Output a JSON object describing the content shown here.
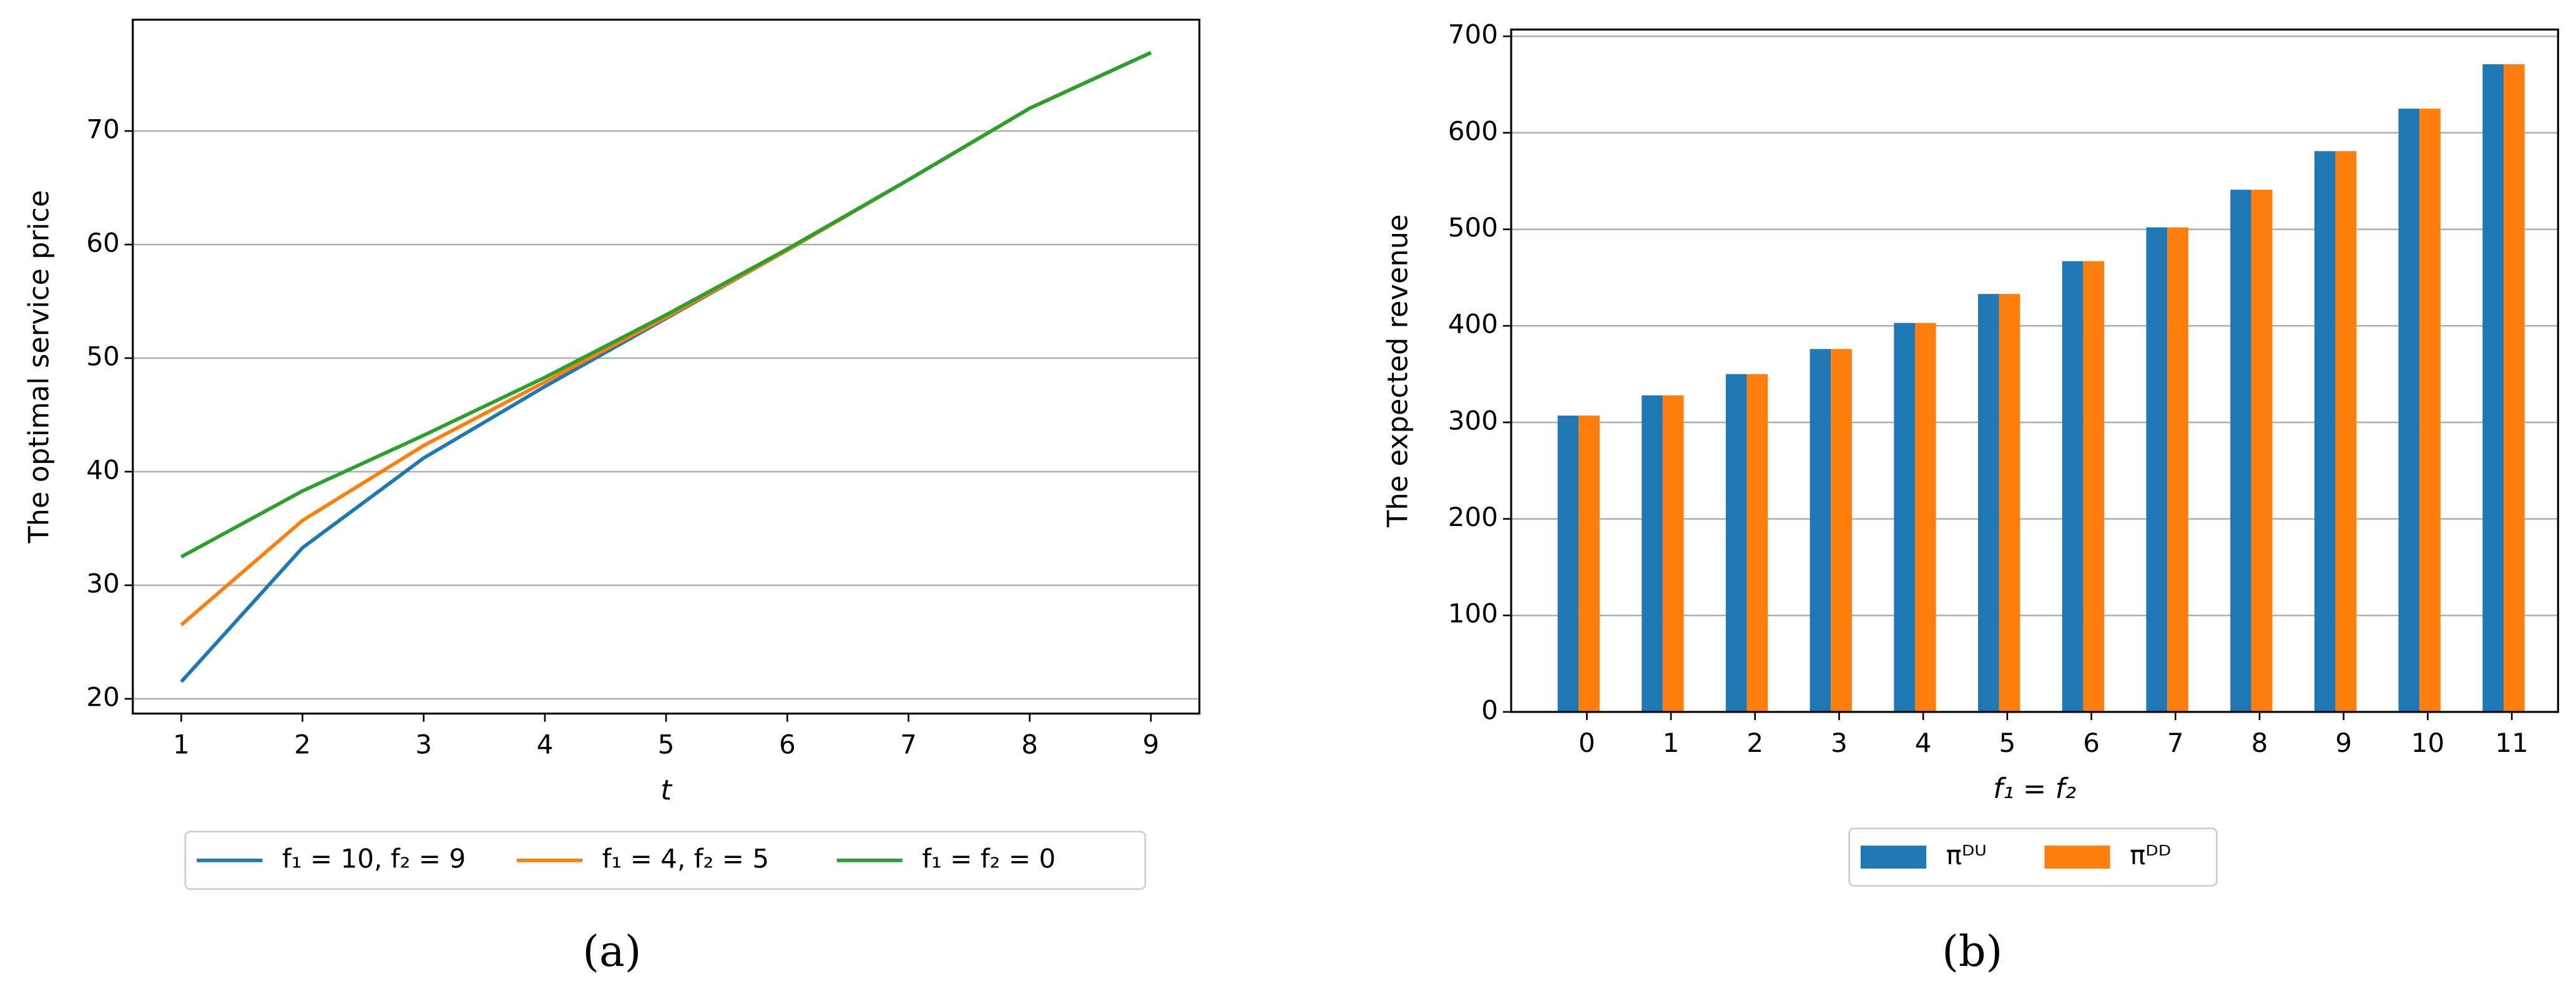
{
  "chart_data": [
    {
      "type": "line",
      "panel_label": "(a)",
      "x_label": "t",
      "y_label": "The optimal service price",
      "x": [
        1,
        2,
        3,
        4,
        5,
        6,
        7,
        8,
        9
      ],
      "series": [
        {
          "name": "f₁ = 10, f₂ = 9",
          "color": "#1f77b4",
          "values": [
            21.5,
            33.3,
            41.2,
            47.5,
            53.5,
            59.5,
            65.7,
            72.0,
            76.9
          ]
        },
        {
          "name": "f₁ = 4, f₂ = 5",
          "color": "#ff7f0e",
          "values": [
            26.5,
            35.7,
            42.3,
            47.9,
            53.6,
            59.5,
            65.7,
            72.0,
            76.9
          ]
        },
        {
          "name": "f₁ = f₂ = 0",
          "color": "#2ca02c",
          "values": [
            32.5,
            38.3,
            43.2,
            48.3,
            53.8,
            59.6,
            65.7,
            72.0,
            76.9
          ]
        }
      ],
      "xlim": [
        0.6,
        9.4
      ],
      "xticks": [
        1,
        2,
        3,
        4,
        5,
        6,
        7,
        8,
        9
      ],
      "ylim": [
        18.7,
        79.8
      ],
      "yticks": [
        20,
        30,
        40,
        50,
        60,
        70
      ],
      "grid": true,
      "legend": "below"
    },
    {
      "type": "bar",
      "panel_label": "(b)",
      "x_label": "f₁ = f₂",
      "y_label": "The expected revenue",
      "categories": [
        "0",
        "1",
        "2",
        "3",
        "4",
        "5",
        "6",
        "7",
        "8",
        "9",
        "10",
        "11"
      ],
      "series": [
        {
          "name": "πᴰᵁ",
          "color": "#1f77b4",
          "values": [
            307,
            328,
            350,
            376,
            403,
            433,
            467,
            502,
            541,
            581,
            625,
            671
          ]
        },
        {
          "name": "πᴰᴰ",
          "color": "#ff7f0e",
          "values": [
            307,
            328,
            350,
            376,
            403,
            433,
            467,
            502,
            541,
            581,
            625,
            671
          ]
        }
      ],
      "ylim": [
        0,
        707
      ],
      "yticks": [
        0,
        100,
        200,
        300,
        400,
        500,
        600,
        700
      ],
      "grid": true,
      "legend": "below"
    }
  ]
}
